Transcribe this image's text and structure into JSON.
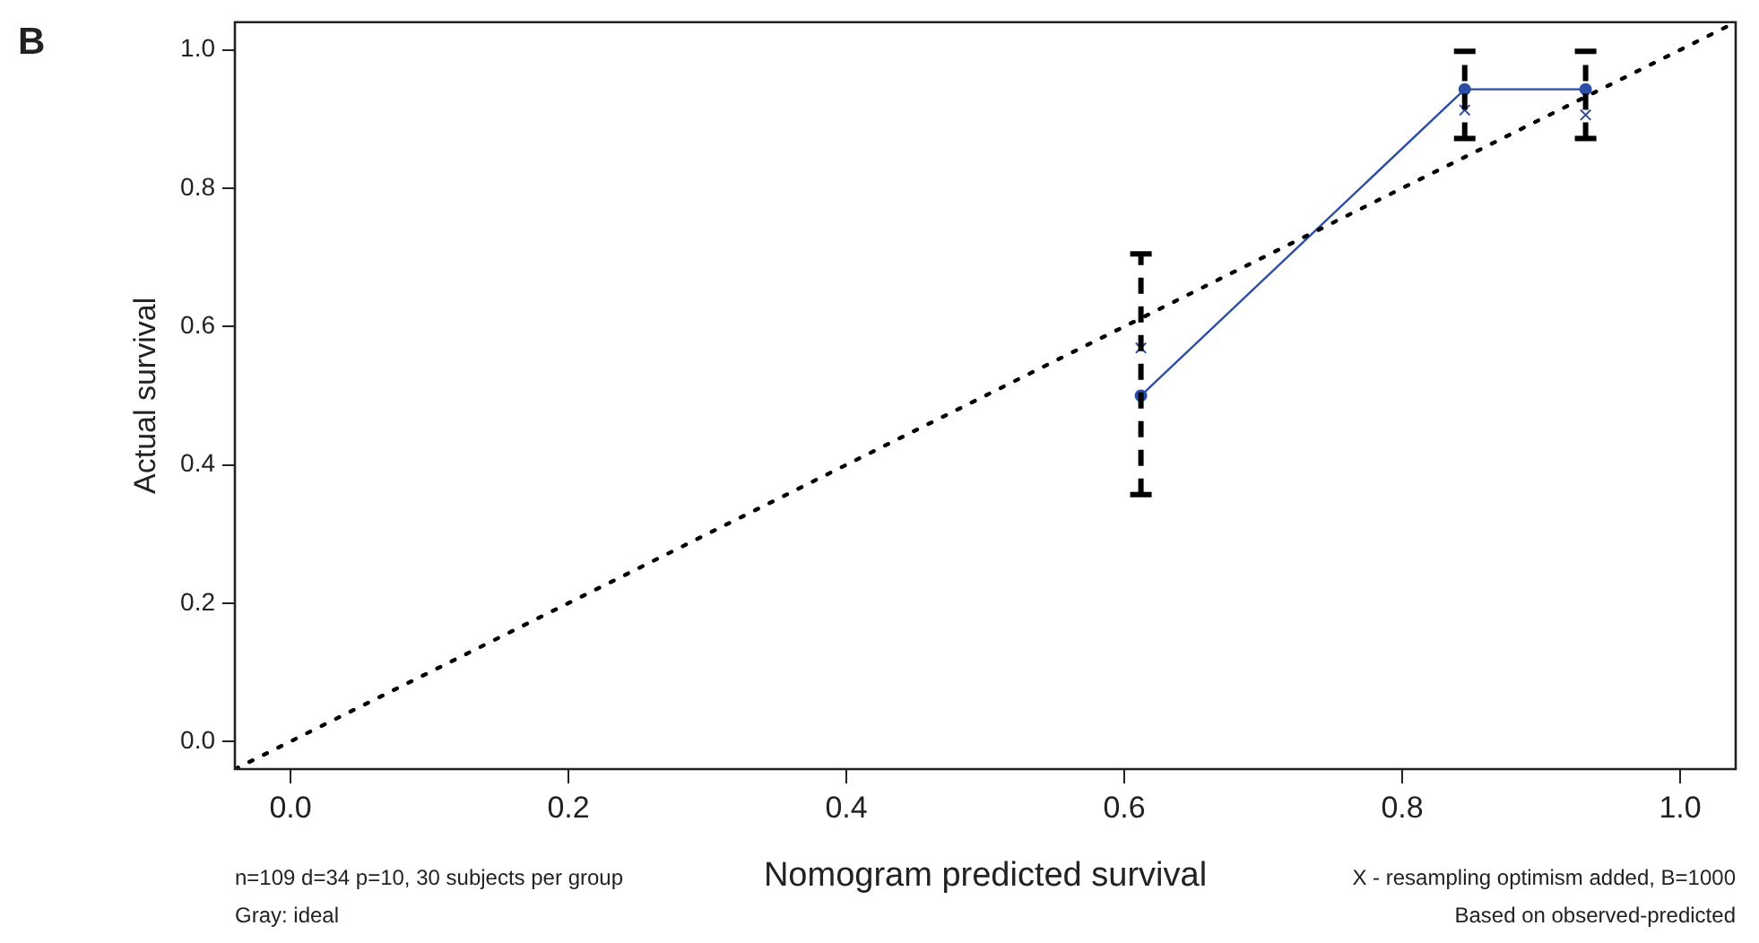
{
  "chart_data": {
    "type": "line",
    "xlabel": "Nomogram predicted survival",
    "ylabel": "Actual survival",
    "annotations": [
      "B",
      "n=109 d=34 p=10, 30 subjects per group",
      "Gray: ideal",
      "X - resampling optimism added, B=1000",
      "Based on observed-predicted"
    ],
    "xlim": [
      -0.04,
      1.04
    ],
    "ylim": [
      -0.04,
      1.04
    ],
    "xticks": [
      {
        "value": 0,
        "label": "0.0"
      },
      {
        "value": 0.2,
        "label": "0.2"
      },
      {
        "value": 0.4,
        "label": "0.4"
      },
      {
        "value": 0.6,
        "label": "0.6"
      },
      {
        "value": 0.8,
        "label": "0.8"
      },
      {
        "value": 1,
        "label": "1.0"
      }
    ],
    "yticks": [
      {
        "value": 0,
        "label": "0.0"
      },
      {
        "value": 0.2,
        "label": "0.2"
      },
      {
        "value": 0.4,
        "label": "0.4"
      },
      {
        "value": 0.6,
        "label": "0.6"
      },
      {
        "value": 0.8,
        "label": "0.8"
      },
      {
        "value": 1,
        "label": "1.0"
      }
    ],
    "grid": false,
    "legend": false,
    "series": [
      {
        "color": "#000000",
        "line_style": "dotted",
        "marker": "none",
        "x": [
          -0.04,
          1.04
        ],
        "values": [
          -0.04,
          1.04
        ]
      },
      {
        "color": "#2b4ea6",
        "line_style": "solid",
        "marker": "circle",
        "x": [
          0.612,
          0.845,
          0.932
        ],
        "values": [
          0.5,
          0.943,
          0.943
        ],
        "errors": [
          [
            0.357,
            0.705
          ],
          [
            0.872,
            0.998
          ],
          [
            0.872,
            0.998
          ]
        ]
      },
      {
        "type": "scatter",
        "color": "#2b4ea6",
        "marker": "cross",
        "x": [
          0.612,
          0.845,
          0.932
        ],
        "values": [
          0.569,
          0.913,
          0.906
        ]
      }
    ]
  }
}
